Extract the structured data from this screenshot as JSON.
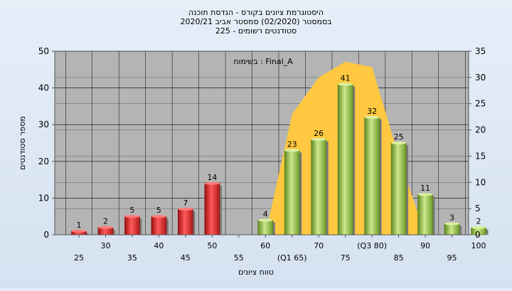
{
  "chart_data": {
    "type": "bar",
    "title_lines": [
      "היסטוגרמת ציונים בקורס - הנדסת תוכנה",
      "בסמסטר  (02/2020)  סמסטר אביב 2020/21",
      "סטודנטים רשומים - 225"
    ],
    "annotation": "בשימוח : Final_A",
    "xlabel": "טווח ציונים",
    "ylabel": "מספר סטודנטים",
    "ylim": [
      0,
      50
    ],
    "y_ticks": [
      "0",
      "10",
      "20",
      "30",
      "40",
      "50"
    ],
    "y2lim": [
      0,
      35
    ],
    "y2_ticks": [
      "0",
      "5",
      "10",
      "15",
      "20",
      "25",
      "30",
      "35"
    ],
    "grid": true,
    "categories": [
      "25",
      "30",
      "35",
      "40",
      "45",
      "50",
      "55",
      "60",
      "(Q1 65)",
      "70",
      "75",
      "(Q3 80)",
      "85",
      "90",
      "95",
      "100"
    ],
    "values": [
      1,
      2,
      5,
      5,
      7,
      14,
      0,
      4,
      23,
      26,
      41,
      32,
      25,
      11,
      3,
      2
    ],
    "value_labels": [
      "1",
      "2",
      "5",
      "5",
      "7",
      "14",
      "",
      "4",
      "23",
      "26",
      "41",
      "32",
      "25",
      "11",
      "3",
      "2"
    ],
    "bar_colors": [
      "#e03030",
      "#e03030",
      "#e03030",
      "#e03030",
      "#e03030",
      "#e03030",
      "#e03030",
      "#8fc040",
      "#8fc040",
      "#8fc040",
      "#8fc040",
      "#8fc040",
      "#8fc040",
      "#8fc040",
      "#8fc040",
      "#8fc040"
    ],
    "area": {
      "color": "#ffc840",
      "points": [
        [
          7,
          0
        ],
        [
          8,
          23
        ],
        [
          9,
          30
        ],
        [
          10,
          33
        ],
        [
          11,
          32
        ],
        [
          12,
          15
        ],
        [
          13,
          0
        ]
      ]
    },
    "colors": {
      "plot_bg": "#b4b4b4",
      "low_bar": "#e03030",
      "high_bar": "#8fc040",
      "area": "#ffc840"
    }
  }
}
